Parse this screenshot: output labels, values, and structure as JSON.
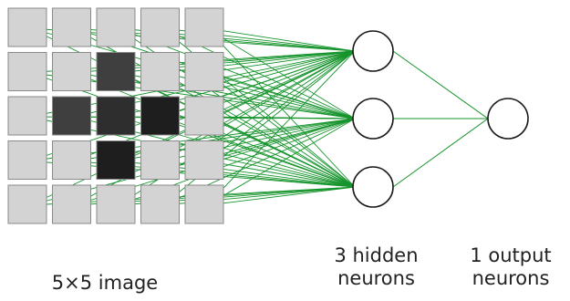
{
  "image": {
    "rows": 5,
    "cols": 5,
    "pixels": [
      [
        0,
        0,
        0,
        0,
        0
      ],
      [
        0,
        0,
        2,
        0,
        0
      ],
      [
        0,
        2,
        3,
        4,
        0
      ],
      [
        0,
        0,
        4,
        0,
        0
      ],
      [
        0,
        0,
        0,
        0,
        0
      ]
    ],
    "palette": [
      "#d3d3d3",
      "#5a5a5a",
      "#3f3f3f",
      "#2e2e2e",
      "#1e1e1e"
    ]
  },
  "network": {
    "hidden_count": 3,
    "output_count": 1,
    "edge_color": "#16942c"
  },
  "labels": {
    "input": "5×5 image",
    "hidden_line1": "3 hidden",
    "hidden_line2": "neurons",
    "output_line1": "1 output",
    "output_line2": "neurons"
  }
}
